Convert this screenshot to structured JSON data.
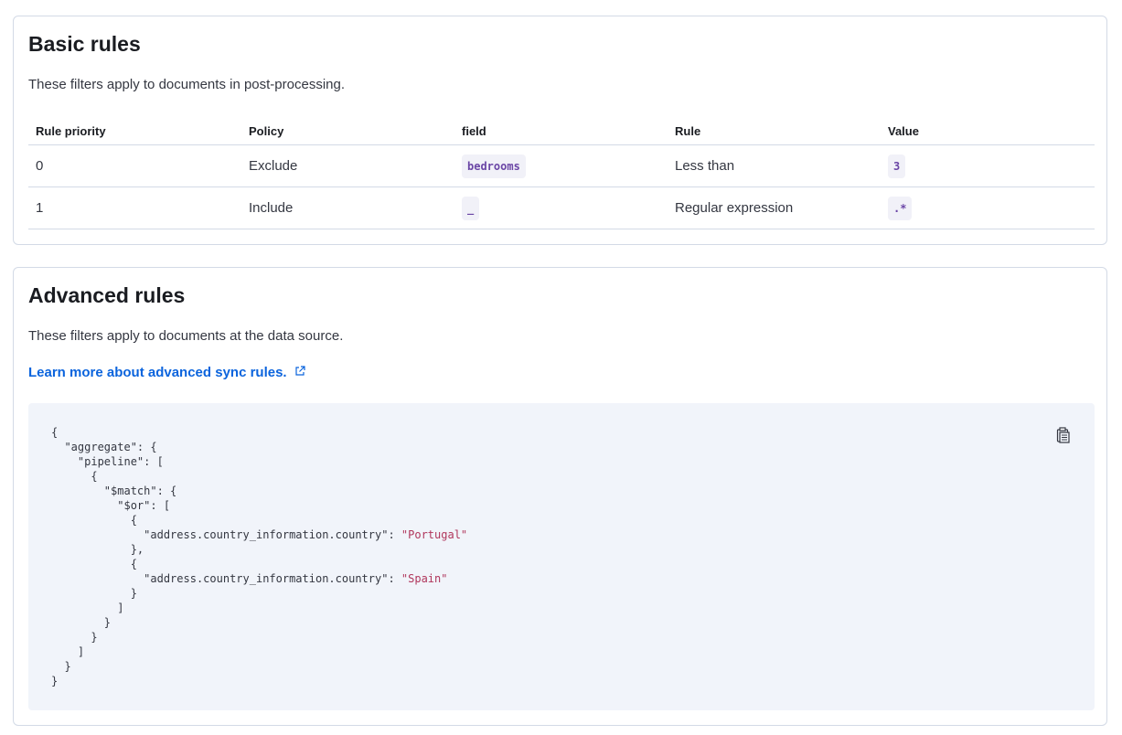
{
  "basic": {
    "title": "Basic rules",
    "description": "These filters apply to documents in post-processing.",
    "columns": [
      "Rule priority",
      "Policy",
      "field",
      "Rule",
      "Value"
    ],
    "rows": [
      {
        "priority": "0",
        "policy": "Exclude",
        "field": "bedrooms",
        "rule": "Less than",
        "value": "3"
      },
      {
        "priority": "1",
        "policy": "Include",
        "field": "_",
        "rule": "Regular expression",
        "value": ".*"
      }
    ]
  },
  "advanced": {
    "title": "Advanced rules",
    "description": "These filters apply to documents at the data source.",
    "link_label": "Learn more about advanced sync rules.",
    "code_lines": [
      [
        "{",
        ""
      ],
      [
        "  \"aggregate\": {",
        ""
      ],
      [
        "    \"pipeline\": [",
        ""
      ],
      [
        "      {",
        ""
      ],
      [
        "        \"$match\": {",
        ""
      ],
      [
        "          \"$or\": [",
        ""
      ],
      [
        "            {",
        ""
      ],
      [
        "              \"address.country_information.country\": ",
        "\"Portugal\""
      ],
      [
        "            },",
        ""
      ],
      [
        "            {",
        ""
      ],
      [
        "              \"address.country_information.country\": ",
        "\"Spain\""
      ],
      [
        "            }",
        ""
      ],
      [
        "          ]",
        ""
      ],
      [
        "        }",
        ""
      ],
      [
        "      }",
        ""
      ],
      [
        "    ]",
        ""
      ],
      [
        "  }",
        ""
      ],
      [
        "}",
        ""
      ]
    ],
    "copy_icon": "clipboard-icon"
  }
}
